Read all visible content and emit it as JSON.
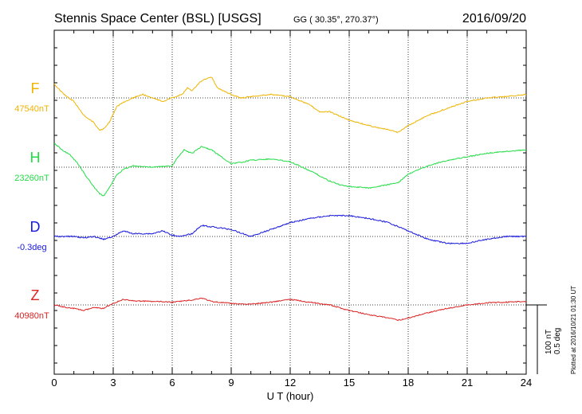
{
  "header": {
    "station": "Stennis Space Center (BSL)  [USGS]",
    "coords": "GG ( 30.35°, 270.37°)",
    "date": "2016/09/20"
  },
  "footer": {
    "plotted": "Plotted at 2016/10/21 01:30 UT",
    "scale_nt": "100 nT",
    "scale_deg": "0.5 deg"
  },
  "chart_data": {
    "type": "line",
    "xlabel": "U T (hour)",
    "xlim": [
      0,
      24
    ],
    "xticks": [
      0,
      3,
      6,
      9,
      12,
      15,
      18,
      21,
      24
    ],
    "grid": true,
    "scale_bar": {
      "nT": 100,
      "deg": 0.5
    },
    "series": [
      {
        "name": "F",
        "baseline_label": "47540nT",
        "baseline": 47540,
        "unit": "nT",
        "color": "#f0b400",
        "x": [
          0,
          0.5,
          1,
          1.5,
          2,
          2.3,
          2.5,
          2.8,
          3.2,
          3.6,
          4,
          4.5,
          5,
          5.5,
          6,
          6.5,
          6.8,
          7,
          7.5,
          8,
          8.3,
          8.6,
          9,
          9.5,
          10,
          11,
          12,
          13,
          13.5,
          14,
          15,
          16,
          17,
          17.5,
          18,
          19,
          20,
          21,
          22,
          23,
          24
        ],
        "y": [
          47560,
          47545,
          47535,
          47515,
          47505,
          47493,
          47495,
          47505,
          47528,
          47535,
          47540,
          47545,
          47540,
          47535,
          47540,
          47545,
          47555,
          47550,
          47565,
          47570,
          47555,
          47550,
          47545,
          47540,
          47542,
          47545,
          47542,
          47530,
          47520,
          47520,
          47508,
          47500,
          47494,
          47490,
          47500,
          47515,
          47525,
          47535,
          47540,
          47542,
          47545
        ]
      },
      {
        "name": "H",
        "baseline_label": "23260nT",
        "baseline": 23260,
        "unit": "nT",
        "color": "#22dd44",
        "x": [
          0,
          0.4,
          0.8,
          1.2,
          1.6,
          2,
          2.3,
          2.5,
          2.8,
          3.2,
          3.6,
          4,
          5,
          6,
          6.3,
          6.6,
          7,
          7.5,
          8,
          8.5,
          9,
          9.5,
          10,
          11,
          12,
          13,
          14,
          14.5,
          15,
          16,
          17,
          17.5,
          18,
          19,
          20,
          21,
          22,
          23,
          24
        ],
        "y": [
          23295,
          23285,
          23278,
          23265,
          23248,
          23232,
          23222,
          23218,
          23230,
          23250,
          23258,
          23262,
          23260,
          23262,
          23275,
          23285,
          23280,
          23290,
          23285,
          23275,
          23265,
          23267,
          23270,
          23272,
          23268,
          23255,
          23240,
          23235,
          23232,
          23230,
          23235,
          23238,
          23250,
          23262,
          23270,
          23275,
          23280,
          23283,
          23285
        ]
      },
      {
        "name": "D",
        "baseline_label": "-0.3deg",
        "baseline": -0.3,
        "unit": "deg",
        "color": "#1818dd",
        "x": [
          0,
          1,
          1.5,
          2,
          2.5,
          3,
          3.5,
          4,
          5,
          5.5,
          6,
          6.5,
          7,
          7.5,
          8,
          9,
          10,
          11,
          12,
          13,
          14,
          15,
          16,
          17,
          18,
          19,
          20,
          21,
          22,
          23,
          24
        ],
        "y": [
          -0.3,
          -0.3,
          -0.31,
          -0.3,
          -0.32,
          -0.3,
          -0.26,
          -0.28,
          -0.28,
          -0.26,
          -0.29,
          -0.3,
          -0.28,
          -0.22,
          -0.23,
          -0.25,
          -0.3,
          -0.25,
          -0.2,
          -0.17,
          -0.15,
          -0.15,
          -0.17,
          -0.2,
          -0.26,
          -0.32,
          -0.35,
          -0.35,
          -0.32,
          -0.3,
          -0.3
        ]
      },
      {
        "name": "Z",
        "baseline_label": "40980nT",
        "baseline": 40980,
        "unit": "nT",
        "color": "#dd2222",
        "x": [
          0,
          0.5,
          1,
          1.5,
          2,
          2.5,
          3,
          3.5,
          4,
          5,
          6,
          7,
          7.5,
          8,
          9,
          10,
          11,
          12,
          13,
          14,
          15,
          16,
          17,
          17.5,
          18,
          19,
          20,
          21,
          22,
          23,
          24
        ],
        "y": [
          40980,
          40977,
          40975,
          40972,
          40976,
          40975,
          40982,
          40988,
          40986,
          40985,
          40984,
          40987,
          40990,
          40985,
          40982,
          40981,
          40984,
          40988,
          40984,
          40980,
          40972,
          40966,
          40961,
          40958,
          40961,
          40969,
          40975,
          40980,
          40983,
          40984,
          40985
        ]
      }
    ]
  }
}
